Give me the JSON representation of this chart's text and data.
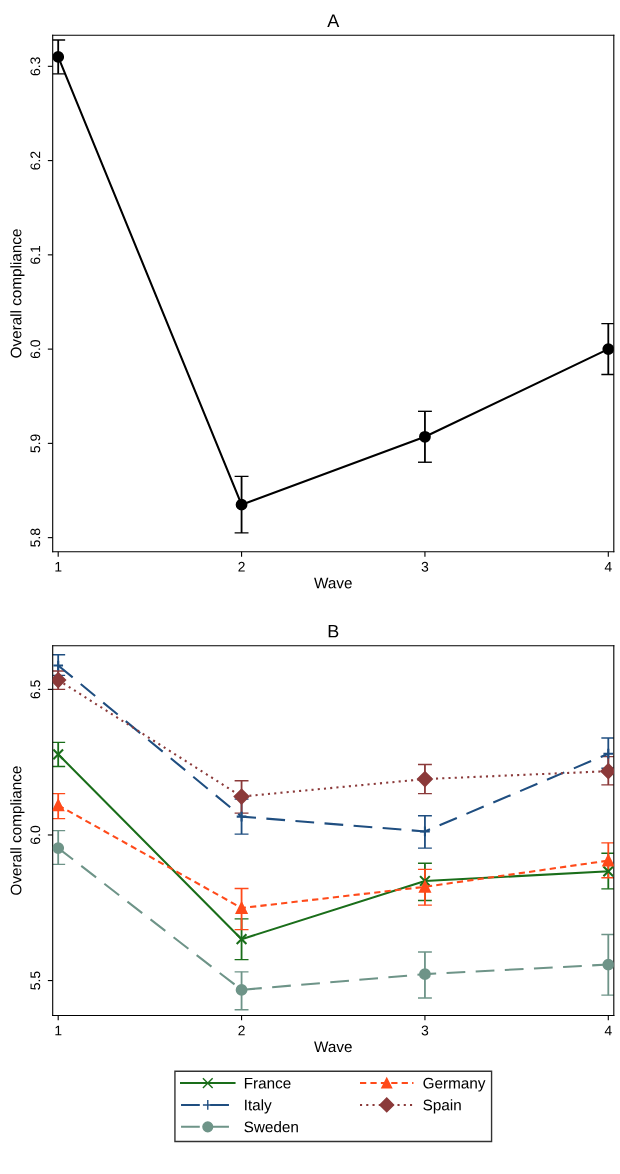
{
  "chart_data": [
    {
      "type": "line",
      "title": "A",
      "xlabel": "Wave",
      "ylabel": "Overall compliance",
      "x": [
        1,
        2,
        3,
        4
      ],
      "xlim": [
        0.97,
        4.03
      ],
      "xticks": [
        1,
        2,
        3,
        4
      ],
      "ylim": [
        5.785,
        6.333
      ],
      "yticks": [
        {
          "value": 5.8,
          "label": "5.8"
        },
        {
          "value": 5.9,
          "label": "5.9"
        },
        {
          "value": 6.0,
          "label": "6.0"
        },
        {
          "value": 6.1,
          "label": "6.1"
        },
        {
          "value": 6.2,
          "label": "6.2"
        },
        {
          "value": 6.3,
          "label": "6.3"
        }
      ],
      "marker": "circle",
      "line_style": "solid",
      "grid": false,
      "legend": false,
      "series": [
        {
          "color": "#000000",
          "values": [
            6.31,
            5.835,
            5.907,
            6.0
          ],
          "errors": [
            [
              6.292,
              6.328
            ],
            [
              5.805,
              5.865
            ],
            [
              5.88,
              5.934
            ],
            [
              5.973,
              6.027
            ]
          ]
        }
      ]
    },
    {
      "type": "line",
      "title": "B",
      "xlabel": "Wave",
      "ylabel": "Overall compliance",
      "x": [
        1,
        2,
        3,
        4
      ],
      "xlim": [
        0.97,
        4.03
      ],
      "xticks": [
        1,
        2,
        3,
        4
      ],
      "ylim": [
        5.38,
        6.65
      ],
      "yticks": [
        {
          "value": 5.5,
          "label": "5.5"
        },
        {
          "value": 6.0,
          "label": "6.0"
        },
        {
          "value": 6.5,
          "label": "6.5"
        }
      ],
      "grid": false,
      "legend": "bottom",
      "series": [
        {
          "name": "France",
          "color": "#1a6e1a",
          "marker": "cross",
          "line_style": "solid",
          "values": [
            6.277,
            5.642,
            5.842,
            5.875
          ],
          "errors": [
            [
              6.235,
              6.318
            ],
            [
              5.572,
              5.712
            ],
            [
              5.775,
              5.903
            ],
            [
              5.815,
              5.937
            ]
          ]
        },
        {
          "name": "Germany",
          "color": "#ff4a1a",
          "marker": "triangle",
          "line_style": "dashed",
          "values": [
            6.102,
            5.749,
            5.822,
            5.912
          ],
          "errors": [
            [
              6.056,
              6.142
            ],
            [
              5.675,
              5.816
            ],
            [
              5.759,
              5.882
            ],
            [
              5.853,
              5.973
            ]
          ]
        },
        {
          "name": "Italy",
          "color": "#1f4e80",
          "marker": "plus",
          "line_style": "longdash",
          "values": [
            6.582,
            6.063,
            6.012,
            6.279
          ],
          "errors": [
            [
              6.548,
              6.619
            ],
            [
              6.003,
              6.123
            ],
            [
              5.955,
              6.066
            ],
            [
              6.229,
              6.333
            ]
          ]
        },
        {
          "name": "Spain",
          "color": "#8b3a3a",
          "marker": "diamond",
          "line_style": "dotted",
          "values": [
            6.532,
            6.132,
            6.192,
            6.219
          ],
          "errors": [
            [
              6.5,
              6.563
            ],
            [
              6.075,
              6.186
            ],
            [
              6.142,
              6.242
            ],
            [
              6.172,
              6.269
            ]
          ]
        },
        {
          "name": "Sweden",
          "color": "#6e9488",
          "marker": "circle",
          "line_style": "longdash",
          "values": [
            5.955,
            5.468,
            5.522,
            5.555
          ],
          "errors": [
            [
              5.899,
              6.015
            ],
            [
              5.4,
              5.53
            ],
            [
              5.44,
              5.598
            ],
            [
              5.45,
              5.658
            ]
          ]
        }
      ]
    }
  ]
}
